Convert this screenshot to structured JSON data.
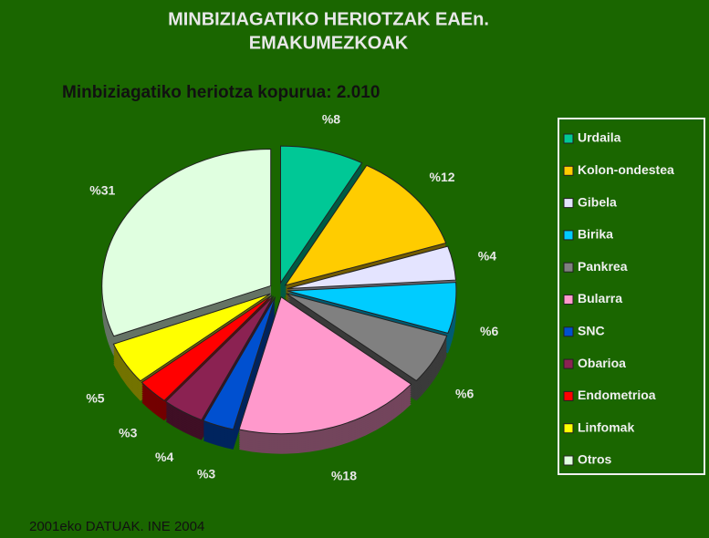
{
  "chart_data": {
    "type": "pie",
    "title": [
      "MINBIZIAGATIKO HERIOTZAK  EAEn.",
      "EMAKUMEZKOAK"
    ],
    "subtitle": "Minbiziagatiko heriotza kopurua: 2.010",
    "footer": "2001eko DATUAK.  INE 2004",
    "categories": [
      "Urdaila",
      "Kolon-ondestea",
      "Gibela",
      "Birika",
      "Pankrea",
      "Bularra",
      "SNC",
      "Obarioa",
      "Endometrioa",
      "Linfomak",
      "Otros"
    ],
    "values": [
      8,
      12,
      4,
      6,
      6,
      18,
      3,
      4,
      3,
      5,
      31
    ],
    "value_labels": [
      "%8",
      "%12",
      "%4",
      "%6",
      "%6",
      "%18",
      "%3",
      "%4",
      "%3",
      "%5",
      "%31"
    ],
    "colors": [
      "#00c896",
      "#ffcc00",
      "#e4e4ff",
      "#00ccff",
      "#808080",
      "#ff99cc",
      "#0050d0",
      "#8b2252",
      "#ff0000",
      "#ffff00",
      "#e0ffe0"
    ],
    "legend": "right"
  }
}
